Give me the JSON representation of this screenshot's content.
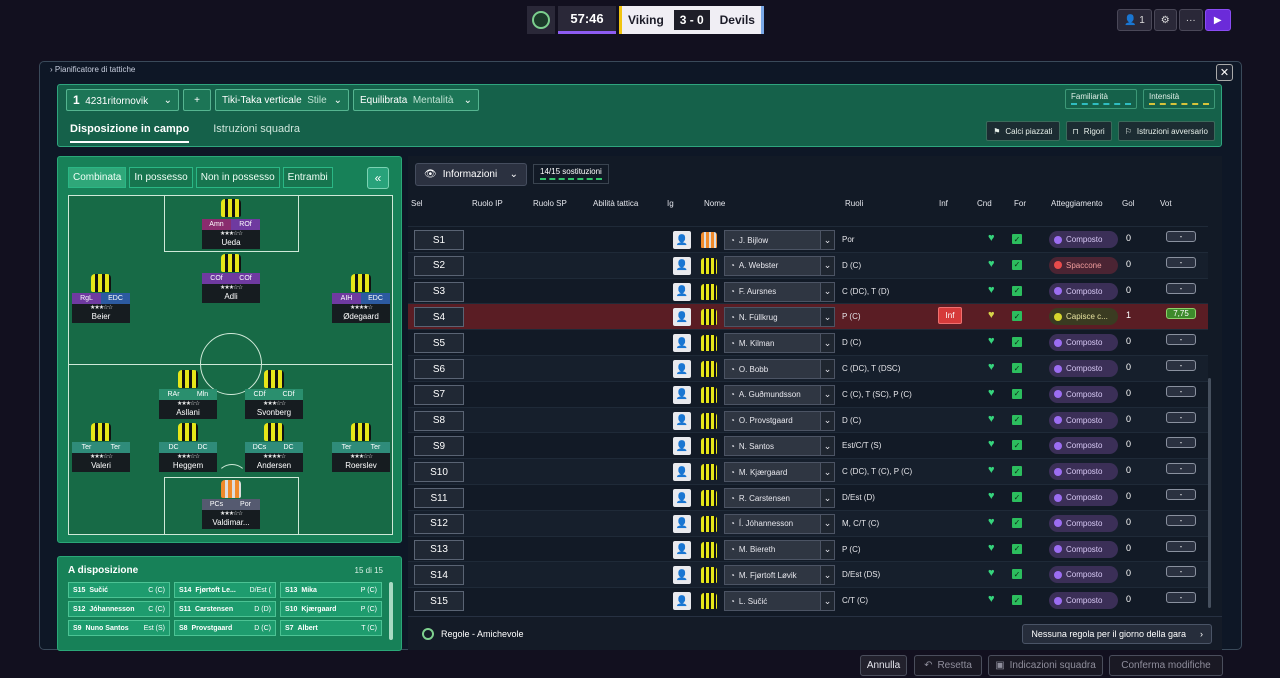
{
  "match": {
    "clock": "57:46",
    "home": "Viking",
    "score": "3 - 0",
    "away": "Devils"
  },
  "topright": {
    "count": "1",
    "settings_icon": "gear-icon",
    "more": "···",
    "play_icon": "play-icon"
  },
  "window": {
    "title": "Pianificatore di tattiche",
    "close": "✕"
  },
  "tactic": {
    "slot": "1",
    "formation": "4231ritornovik",
    "add": "+",
    "style_value": "Tiki-Taka verticale",
    "style_label": "Stile",
    "mentality_value": "Equilibrata",
    "mentality_label": "Mentalità",
    "familiarity": "Familiarità",
    "intensity": "Intensità",
    "tabs": [
      "Disposizione in campo",
      "Istruzioni squadra"
    ],
    "buttons": [
      "Calci piazzati",
      "Rigori",
      "Istruzioni avversario"
    ]
  },
  "pitch": {
    "modes": [
      "Combinata",
      "In possesso",
      "Non in possesso",
      "Entrambi"
    ],
    "collapse": "«",
    "players": [
      {
        "roles": [
          "",
          ""
        ],
        "name": "",
        "stars": ""
      },
      {
        "roles": [
          "Amn",
          "ROf"
        ],
        "name": "Ueda",
        "stars": "★★★☆☆"
      },
      {
        "roles": [
          "COf",
          "COf"
        ],
        "name": "Adli",
        "stars": "★★★☆☆"
      },
      {
        "roles": [
          "RgL",
          "EDC"
        ],
        "name": "Beier",
        "stars": "★★★☆☆"
      },
      {
        "roles": [
          "AIH",
          "EDC"
        ],
        "name": "Ødegaard",
        "stars": "★★★★☆"
      },
      {
        "roles": [
          "RAr",
          "Mln"
        ],
        "name": "Asllani",
        "stars": "★★★☆☆"
      },
      {
        "roles": [
          "CDf",
          "CDf"
        ],
        "name": "Svonberg",
        "stars": "★★★☆☆"
      },
      {
        "roles": [
          "Ter",
          "Ter"
        ],
        "name": "Valeri",
        "stars": "★★★☆☆"
      },
      {
        "roles": [
          "DC",
          "DC"
        ],
        "name": "Heggem",
        "stars": "★★★☆☆"
      },
      {
        "roles": [
          "DCs",
          "DC"
        ],
        "name": "Andersen",
        "stars": "★★★★☆"
      },
      {
        "roles": [
          "Ter",
          "Ter"
        ],
        "name": "Roerslev",
        "stars": "★★★☆☆"
      },
      {
        "roles": [
          "PCs",
          "Por"
        ],
        "name": "Valdimar...",
        "stars": "★★★☆☆"
      }
    ]
  },
  "bench": {
    "title": "A disposizione",
    "count": "15 di 15",
    "cards": [
      {
        "slot": "S15",
        "name": "Sučić",
        "pos": "C (C)"
      },
      {
        "slot": "S14",
        "name": "Fjørtoft Le...",
        "pos": "D/Est ("
      },
      {
        "slot": "S13",
        "name": "Mika",
        "pos": "P (C)"
      },
      {
        "slot": "S12",
        "name": "Jóhannesson",
        "pos": "C (C)"
      },
      {
        "slot": "S11",
        "name": "Carstensen",
        "pos": "D (D)"
      },
      {
        "slot": "S10",
        "name": "Kjærgaard",
        "pos": "P (C)"
      },
      {
        "slot": "S9",
        "name": "Nuno Santos",
        "pos": "Est (S)"
      },
      {
        "slot": "S8",
        "name": "Provstgaard",
        "pos": "D (C)"
      },
      {
        "slot": "S7",
        "name": "Albert",
        "pos": "T (C)"
      }
    ]
  },
  "table": {
    "dropdown": "Informazioni",
    "subs": "14/15 sostituzioni",
    "headers": {
      "sel": "Sel",
      "ruolo_ip": "Ruolo IP",
      "ruolo_sp": "Ruolo SP",
      "abilita": "Abilità tattica",
      "ig": "Ig",
      "nome": "Nome",
      "ruoli": "Ruoli",
      "inf": "Inf",
      "cnd": "Cnd",
      "for": "For",
      "att": "Atteggiamento",
      "gol": "Gol",
      "vot": "Vot"
    },
    "rows": [
      {
        "slot": "S1",
        "name": "J. Bijlow",
        "roles": "Por",
        "att": "Composto",
        "att_type": "",
        "gol": "0",
        "vote": "-",
        "gk": true,
        "inf": "",
        "hi": false
      },
      {
        "slot": "S2",
        "name": "A. Webster",
        "roles": "D (C)",
        "att": "Spaccone",
        "att_type": "red",
        "gol": "0",
        "vote": "-",
        "gk": false,
        "inf": "",
        "hi": false
      },
      {
        "slot": "S3",
        "name": "F. Aursnes",
        "roles": "C (DC), T (D)",
        "att": "Composto",
        "att_type": "",
        "gol": "0",
        "vote": "-",
        "gk": false,
        "inf": "",
        "hi": false
      },
      {
        "slot": "S4",
        "name": "N. Füllkrug",
        "roles": "P (C)",
        "att": "Capisce c...",
        "att_type": "yel",
        "gol": "1",
        "vote": "7,75",
        "gk": false,
        "inf": "Inf",
        "hi": true
      },
      {
        "slot": "S5",
        "name": "M. Kilman",
        "roles": "D (C)",
        "att": "Composto",
        "att_type": "",
        "gol": "0",
        "vote": "-",
        "gk": false,
        "inf": "",
        "hi": false
      },
      {
        "slot": "S6",
        "name": "O. Bobb",
        "roles": "C (DC), T (DSC)",
        "att": "Composto",
        "att_type": "",
        "gol": "0",
        "vote": "-",
        "gk": false,
        "inf": "",
        "hi": false
      },
      {
        "slot": "S7",
        "name": "A. Guðmundsson",
        "roles": "C (C), T (SC), P (C)",
        "att": "Composto",
        "att_type": "",
        "gol": "0",
        "vote": "-",
        "gk": false,
        "inf": "",
        "hi": false
      },
      {
        "slot": "S8",
        "name": "O. Provstgaard",
        "roles": "D (C)",
        "att": "Composto",
        "att_type": "",
        "gol": "0",
        "vote": "-",
        "gk": false,
        "inf": "",
        "hi": false
      },
      {
        "slot": "S9",
        "name": "N. Santos",
        "roles": "Est/C/T (S)",
        "att": "Composto",
        "att_type": "",
        "gol": "0",
        "vote": "-",
        "gk": false,
        "inf": "",
        "hi": false
      },
      {
        "slot": "S10",
        "name": "M. Kjærgaard",
        "roles": "C (DC), T (C), P (C)",
        "att": "Composto",
        "att_type": "",
        "gol": "0",
        "vote": "-",
        "gk": false,
        "inf": "",
        "hi": false
      },
      {
        "slot": "S11",
        "name": "R. Carstensen",
        "roles": "D/Est (D)",
        "att": "Composto",
        "att_type": "",
        "gol": "0",
        "vote": "-",
        "gk": false,
        "inf": "",
        "hi": false
      },
      {
        "slot": "S12",
        "name": "Í. Jóhannesson",
        "roles": "M, C/T (C)",
        "att": "Composto",
        "att_type": "",
        "gol": "0",
        "vote": "-",
        "gk": false,
        "inf": "",
        "hi": false
      },
      {
        "slot": "S13",
        "name": "M. Biereth",
        "roles": "P (C)",
        "att": "Composto",
        "att_type": "",
        "gol": "0",
        "vote": "-",
        "gk": false,
        "inf": "",
        "hi": false
      },
      {
        "slot": "S14",
        "name": "M. Fjørtoft Løvik",
        "roles": "D/Est (DS)",
        "att": "Composto",
        "att_type": "",
        "gol": "0",
        "vote": "-",
        "gk": false,
        "inf": "",
        "hi": false
      },
      {
        "slot": "S15",
        "name": "L. Sučić",
        "roles": "C/T (C)",
        "att": "Composto",
        "att_type": "",
        "gol": "0",
        "vote": "-",
        "gk": false,
        "inf": "",
        "hi": false
      }
    ],
    "footer_rules": "Regole - Amichevole",
    "footer_right": "Nessuna regola per il giorno della gara",
    "footer_arrow": "›"
  },
  "bottom": {
    "cancel": "Annulla",
    "reset": "Resetta",
    "hints": "Indicazioni squadra",
    "confirm": "Conferma modifiche"
  },
  "colors": {
    "accent": "#6b2bd9",
    "pitch": "#178158",
    "highlight_row": "#5a1d24"
  }
}
